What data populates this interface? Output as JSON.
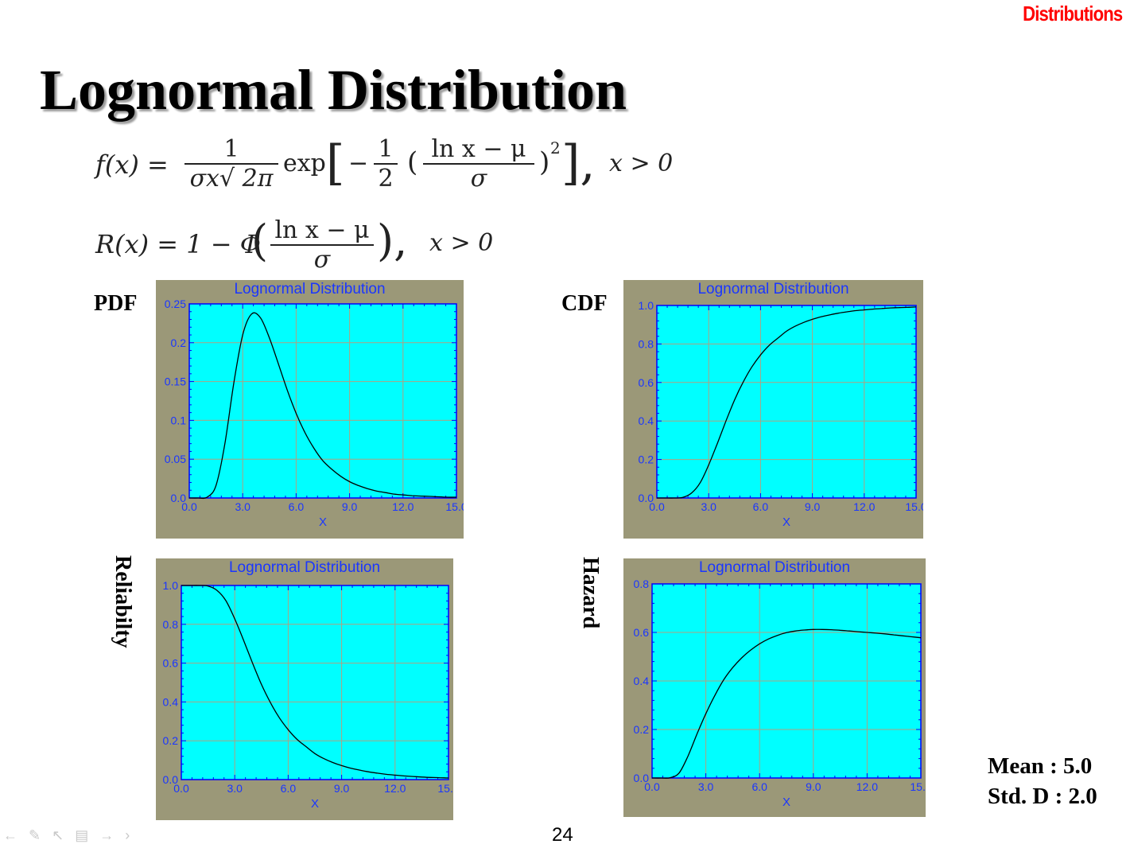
{
  "header_tag": "Distributions",
  "title": "Lognormal Distribution",
  "equations": {
    "pdf": {
      "lhs": "f(x) =",
      "frac1_num": "1",
      "frac1_den": "σx√ 2π",
      "exp": "exp",
      "bracket_left": "[",
      "minus": "−",
      "frac2_num": "1",
      "frac2_den": "2",
      "paren_left": "(",
      "frac3_num": "ln x − μ",
      "frac3_den": "σ",
      "paren_right": ")",
      "power": "2",
      "bracket_right": "],",
      "condition": "x > 0"
    },
    "reliability": {
      "lhs": "R(x) = 1 − Φ",
      "paren_left": "(",
      "frac_num": "ln x − μ",
      "frac_den": "σ",
      "paren_right": "),",
      "condition": "x > 0"
    }
  },
  "labels": {
    "pdf": "PDF",
    "cdf": "CDF",
    "reliability": "Reliabilty",
    "hazard": "Hazard"
  },
  "stats": {
    "mean": "Mean : 5.0",
    "std": "Std. D : 2.0"
  },
  "page_number": "24",
  "nav_icons": [
    "arrow-left-icon",
    "pen-icon",
    "pointer-icon",
    "page-icon",
    "arrow-right-icon",
    "chevron-right-icon"
  ],
  "colors": {
    "plot_bg": "#00ffff",
    "frame": "#9b9878",
    "axis": "#0000ff",
    "grid": "#b0a080",
    "curve": "#000000",
    "header": "#ff0000"
  },
  "chart_data": [
    {
      "id": "pdf",
      "type": "line",
      "title": "Lognormal Distribution",
      "xlabel": "X",
      "ylabel": "",
      "xlim": [
        0,
        15
      ],
      "ylim": [
        0,
        0.25
      ],
      "xticks": [
        "0.0",
        "3.0",
        "6.0",
        "9.0",
        "12.0",
        "15.0"
      ],
      "yticks": [
        "0.0",
        "0.05",
        "0.1",
        "0.15",
        "0.2",
        "0.25"
      ],
      "grid": true,
      "x": [
        0,
        0.5,
        1,
        1.5,
        2,
        2.5,
        3,
        3.5,
        4,
        4.5,
        5,
        5.5,
        6,
        6.5,
        7,
        7.5,
        8,
        8.5,
        9,
        9.5,
        10,
        10.5,
        11,
        11.5,
        12,
        12.5,
        13,
        13.5,
        14,
        14.5,
        15
      ],
      "y": [
        0,
        0,
        0.001,
        0.016,
        0.07,
        0.148,
        0.21,
        0.237,
        0.232,
        0.206,
        0.173,
        0.139,
        0.109,
        0.084,
        0.064,
        0.048,
        0.037,
        0.028,
        0.021,
        0.016,
        0.012,
        0.009,
        0.007,
        0.005,
        0.004,
        0.003,
        0.0025,
        0.002,
        0.0015,
        0.001,
        0.001
      ]
    },
    {
      "id": "cdf",
      "type": "line",
      "title": "Lognormal Distribution",
      "xlabel": "X",
      "ylabel": "",
      "xlim": [
        0,
        15
      ],
      "ylim": [
        0,
        1.0
      ],
      "xticks": [
        "0.0",
        "3.0",
        "6.0",
        "9.0",
        "12.0",
        "15.0"
      ],
      "yticks": [
        "0.0",
        "0.2",
        "0.4",
        "0.6",
        "0.8",
        "1.0"
      ],
      "grid": true,
      "x": [
        0,
        0.5,
        1,
        1.5,
        2,
        2.5,
        3,
        3.5,
        4,
        4.5,
        5,
        5.5,
        6,
        6.5,
        7,
        7.5,
        8,
        8.5,
        9,
        9.5,
        10,
        10.5,
        11,
        11.5,
        12,
        12.5,
        13,
        13.5,
        14,
        14.5,
        15
      ],
      "y": [
        0,
        0,
        0,
        0.003,
        0.025,
        0.078,
        0.172,
        0.283,
        0.4,
        0.51,
        0.603,
        0.681,
        0.743,
        0.793,
        0.83,
        0.866,
        0.892,
        0.912,
        0.928,
        0.941,
        0.951,
        0.96,
        0.967,
        0.973,
        0.977,
        0.981,
        0.984,
        0.987,
        0.989,
        0.99,
        0.992
      ]
    },
    {
      "id": "reliability",
      "type": "line",
      "title": "Lognormal Distribution",
      "xlabel": "X",
      "ylabel": "",
      "xlim": [
        0,
        15
      ],
      "ylim": [
        0,
        1.0
      ],
      "xticks": [
        "0.0",
        "3.0",
        "6.0",
        "9.0",
        "12.0",
        "15.0"
      ],
      "yticks": [
        "0.0",
        "0.2",
        "0.4",
        "0.6",
        "0.8",
        "1.0"
      ],
      "grid": true,
      "x": [
        0,
        0.5,
        1,
        1.5,
        2,
        2.5,
        3,
        3.5,
        4,
        4.5,
        5,
        5.5,
        6,
        6.5,
        7,
        7.5,
        8,
        8.5,
        9,
        9.5,
        10,
        10.5,
        11,
        11.5,
        12,
        12.5,
        13,
        13.5,
        14,
        14.5,
        15
      ],
      "y": [
        1,
        1,
        1,
        0.997,
        0.975,
        0.922,
        0.828,
        0.717,
        0.6,
        0.49,
        0.397,
        0.319,
        0.257,
        0.207,
        0.17,
        0.134,
        0.108,
        0.088,
        0.072,
        0.059,
        0.049,
        0.04,
        0.033,
        0.027,
        0.023,
        0.019,
        0.016,
        0.013,
        0.011,
        0.01,
        0.008
      ]
    },
    {
      "id": "hazard",
      "type": "line",
      "title": "Lognormal Distribution",
      "xlabel": "X",
      "ylabel": "",
      "xlim": [
        0,
        15
      ],
      "ylim": [
        0,
        0.8
      ],
      "xticks": [
        "0.0",
        "3.0",
        "6.0",
        "9.0",
        "12.0",
        "15.0"
      ],
      "yticks": [
        "0.0",
        "0.2",
        "0.4",
        "0.6",
        "0.8"
      ],
      "grid": true,
      "x": [
        0,
        0.5,
        1,
        1.5,
        2,
        2.5,
        3,
        3.5,
        4,
        4.5,
        5,
        5.5,
        6,
        6.5,
        7,
        7.5,
        8,
        8.5,
        9,
        9.5,
        10,
        10.5,
        11,
        11.5,
        12,
        12.5,
        13,
        13.5,
        14,
        14.5,
        15
      ],
      "y": [
        0,
        0,
        0.001,
        0.02,
        0.09,
        0.18,
        0.265,
        0.34,
        0.405,
        0.455,
        0.495,
        0.527,
        0.553,
        0.573,
        0.588,
        0.599,
        0.606,
        0.61,
        0.612,
        0.612,
        0.611,
        0.609,
        0.606,
        0.603,
        0.6,
        0.597,
        0.594,
        0.59,
        0.586,
        0.582,
        0.578
      ]
    }
  ]
}
